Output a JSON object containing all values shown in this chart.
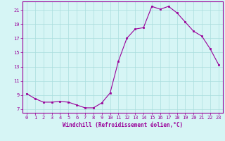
{
  "x": [
    0,
    1,
    2,
    3,
    4,
    5,
    6,
    7,
    8,
    9,
    10,
    11,
    12,
    13,
    14,
    15,
    16,
    17,
    18,
    19,
    20,
    21,
    22,
    23
  ],
  "y": [
    9.2,
    8.5,
    8.0,
    8.0,
    8.1,
    8.0,
    7.6,
    7.2,
    7.2,
    7.9,
    9.3,
    13.8,
    17.0,
    18.3,
    18.5,
    21.5,
    21.1,
    21.5,
    20.6,
    19.3,
    18.0,
    17.3,
    15.5,
    13.3
  ],
  "line_color": "#990099",
  "marker": "s",
  "marker_size": 2.0,
  "bg_color": "#d6f5f5",
  "grid_color": "#aadddd",
  "xlabel": "Windchill (Refroidissement éolien,°C)",
  "yticks": [
    7,
    9,
    11,
    13,
    15,
    17,
    19,
    21
  ],
  "xticks": [
    0,
    1,
    2,
    3,
    4,
    5,
    6,
    7,
    8,
    9,
    10,
    11,
    12,
    13,
    14,
    15,
    16,
    17,
    18,
    19,
    20,
    21,
    22,
    23
  ],
  "xlim": [
    -0.5,
    23.5
  ],
  "ylim": [
    6.5,
    22.2
  ],
  "tick_color": "#990099",
  "label_color": "#990099",
  "spine_color": "#990099",
  "tick_fontsize": 5.0,
  "xlabel_fontsize": 5.5
}
